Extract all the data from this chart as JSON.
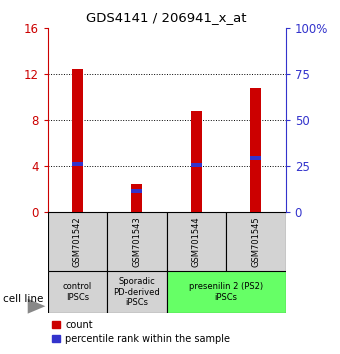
{
  "title": "GDS4141 / 206941_x_at",
  "samples": [
    "GSM701542",
    "GSM701543",
    "GSM701544",
    "GSM701545"
  ],
  "count_values": [
    12.5,
    2.5,
    8.8,
    10.8
  ],
  "percentile_values": [
    26.25,
    11.875,
    25.625,
    29.375
  ],
  "ylim_left": [
    0,
    16
  ],
  "ylim_right": [
    0,
    100
  ],
  "yticks_left": [
    0,
    4,
    8,
    12,
    16
  ],
  "yticks_right": [
    0,
    25,
    50,
    75,
    100
  ],
  "ytick_labels_right": [
    "0",
    "25",
    "50",
    "75",
    "100%"
  ],
  "bar_color_red": "#cc0000",
  "bar_color_blue": "#3333cc",
  "groups": [
    {
      "label": "control\nIPSCs",
      "start": 0,
      "end": 1,
      "color": "#d3d3d3"
    },
    {
      "label": "Sporadic\nPD-derived\niPSCs",
      "start": 1,
      "end": 2,
      "color": "#d3d3d3"
    },
    {
      "label": "presenilin 2 (PS2)\niPSCs",
      "start": 2,
      "end": 4,
      "color": "#66ff66"
    }
  ],
  "bar_width": 0.18,
  "blue_bar_height": 0.35,
  "cell_line_label": "cell line",
  "legend_count": "count",
  "legend_percentile": "percentile rank within the sample",
  "label_color_left": "#cc0000",
  "label_color_right": "#3333cc",
  "dotted_lines": [
    4,
    8,
    12
  ]
}
